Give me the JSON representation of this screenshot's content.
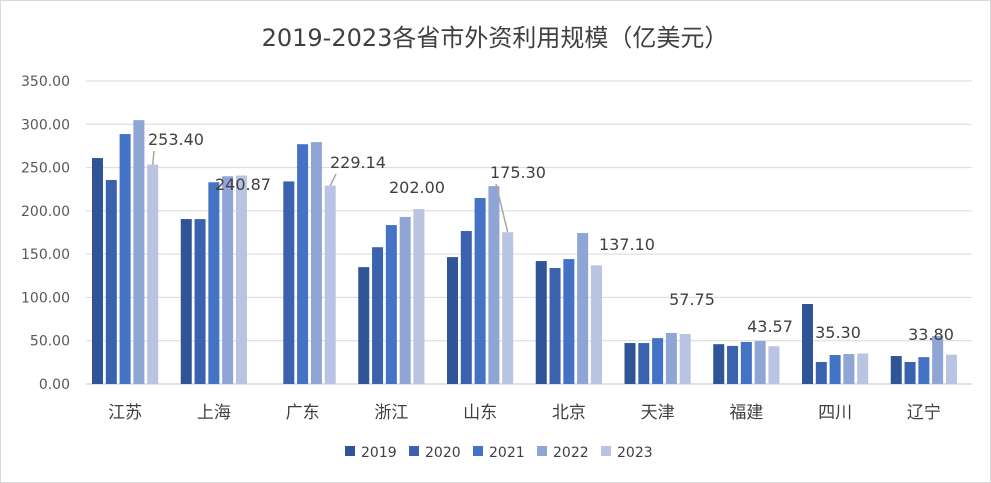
{
  "chart_data": {
    "type": "bar",
    "title": "2019-2023各省市外资利用规模（亿美元）",
    "categories": [
      "江苏",
      "上海",
      "广东",
      "浙江",
      "山东",
      "北京",
      "天津",
      "福建",
      "四川",
      "辽宁"
    ],
    "ylim": [
      0,
      350
    ],
    "yticks": [
      "0.00",
      "50.00",
      "100.00",
      "150.00",
      "200.00",
      "250.00",
      "300.00",
      "350.00"
    ],
    "grid": true,
    "legend_position": "bottom",
    "series": [
      {
        "name": "2019",
        "color": "#2F5597",
        "values": [
          261,
          190.5,
          null,
          135,
          146.6,
          142,
          47.3,
          46,
          92.4,
          32.3
        ]
      },
      {
        "name": "2020",
        "color": "#3A62AE",
        "values": [
          235.6,
          190.5,
          234,
          158,
          176.7,
          134,
          47.3,
          44,
          25.4,
          25.4
        ]
      },
      {
        "name": "2021",
        "color": "#4472C4",
        "values": [
          288.7,
          233,
          277,
          183.6,
          214.8,
          144.3,
          53,
          48.5,
          33.5,
          31
        ]
      },
      {
        "name": "2022",
        "color": "#8FA5D6",
        "values": [
          304.8,
          240,
          279.4,
          193,
          228.6,
          174.4,
          59,
          49.6,
          34.6,
          55.4
        ]
      },
      {
        "name": "2023",
        "color": "#B9C3E2",
        "values": [
          253.4,
          240.87,
          229.14,
          202.0,
          175.3,
          137.1,
          57.75,
          43.57,
          35.3,
          33.8
        ]
      }
    ],
    "data_labels_2023": [
      "253.40",
      "240.87",
      "229.14",
      "202.00",
      "175.30",
      "137.10",
      "57.75",
      "43.57",
      "35.30",
      "33.80"
    ]
  }
}
